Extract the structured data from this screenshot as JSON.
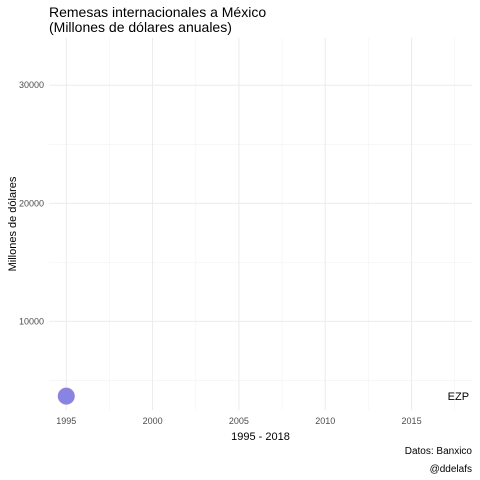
{
  "header": {
    "title_line1": "Remesas internacionales a México",
    "title_line2": "(Millones de dólares anuales)"
  },
  "caption": {
    "source": "Datos: Banxico",
    "handle": "@ddelafs"
  },
  "chart_data": {
    "type": "scatter",
    "title": "Remesas internacionales a México (Millones de dólares anuales)",
    "xlabel": "1995 - 2018",
    "ylabel": "Millones de dólares",
    "xlim": [
      1994,
      2018.5
    ],
    "ylim": [
      2500,
      34000
    ],
    "x_ticks": [
      1995,
      2000,
      2005,
      2010,
      2015
    ],
    "y_ticks": [
      10000,
      20000,
      30000
    ],
    "grid": true,
    "points": [
      {
        "x": 1995,
        "y": 3673,
        "color": "#8080e0"
      }
    ],
    "annotation": {
      "text": "EZP",
      "x": 2018,
      "y": 3673
    }
  }
}
